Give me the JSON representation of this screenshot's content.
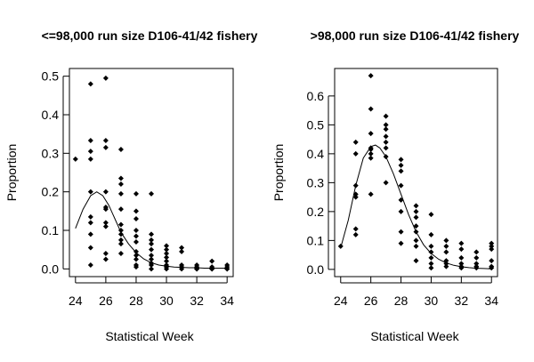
{
  "chart_data": [
    {
      "type": "scatter",
      "title": "<=98,000 run size D106-41/42 fishery",
      "xlabel": "Statistical Week",
      "ylabel": "Proportion",
      "xlim": [
        23.6,
        34.4
      ],
      "ylim": [
        -0.02,
        0.52
      ],
      "xticks": [
        24,
        26,
        28,
        30,
        32,
        34
      ],
      "yticks": [
        0.0,
        0.1,
        0.2,
        0.3,
        0.4,
        0.5
      ],
      "ytick_labels": [
        "0.0",
        "0.1",
        "0.2",
        "0.3",
        "0.4",
        "0.5"
      ],
      "grid": false,
      "series": [
        {
          "kind": "points",
          "x": [
            24,
            25,
            25,
            25,
            25,
            25,
            25,
            25,
            25,
            25,
            25,
            26,
            26,
            26,
            26,
            26,
            26,
            26,
            26,
            26,
            26,
            27,
            27,
            27,
            27,
            27,
            27,
            27,
            27,
            27,
            27,
            27,
            28,
            28,
            28,
            28,
            28,
            28,
            28,
            28,
            28,
            28,
            28,
            29,
            29,
            29,
            29,
            29,
            29,
            29,
            29,
            29,
            29,
            30,
            30,
            30,
            30,
            30,
            30,
            30,
            30,
            31,
            31,
            31,
            31,
            31,
            32,
            32,
            32,
            32,
            33,
            33,
            33,
            33,
            34,
            34,
            34,
            34
          ],
          "y": [
            0.285,
            0.48,
            0.333,
            0.305,
            0.285,
            0.2,
            0.135,
            0.12,
            0.09,
            0.055,
            0.01,
            0.495,
            0.333,
            0.315,
            0.2,
            0.16,
            0.155,
            0.12,
            0.11,
            0.04,
            0.025,
            0.31,
            0.235,
            0.22,
            0.195,
            0.155,
            0.115,
            0.1,
            0.09,
            0.075,
            0.065,
            0.04,
            0.195,
            0.15,
            0.13,
            0.1,
            0.085,
            0.07,
            0.045,
            0.035,
            0.025,
            0.01,
            0.005,
            0.195,
            0.09,
            0.075,
            0.065,
            0.05,
            0.035,
            0.025,
            0.015,
            0.01,
            0.0,
            0.06,
            0.05,
            0.04,
            0.03,
            0.02,
            0.01,
            0.005,
            0.0,
            0.055,
            0.045,
            0.01,
            0.005,
            0.0,
            0.01,
            0.005,
            0.0,
            0.0,
            0.02,
            0.005,
            0.0,
            0.0,
            0.01,
            0.005,
            0.0,
            0.0
          ]
        },
        {
          "kind": "curve",
          "x": [
            24,
            24.5,
            25,
            25.4,
            25.8,
            26.2,
            26.6,
            27,
            27.5,
            28,
            28.5,
            29,
            29.5,
            30,
            30.5,
            31,
            31.5,
            32,
            32.5,
            33,
            33.5,
            34
          ],
          "y": [
            0.105,
            0.155,
            0.19,
            0.2,
            0.19,
            0.165,
            0.13,
            0.095,
            0.065,
            0.042,
            0.026,
            0.016,
            0.01,
            0.007,
            0.005,
            0.004,
            0.003,
            0.003,
            0.002,
            0.002,
            0.002,
            0.002
          ]
        }
      ]
    },
    {
      "type": "scatter",
      "title": ">98,000 run size D106-41/42 fishery",
      "xlabel": "Statistical Week",
      "ylabel": "Proportion",
      "xlim": [
        23.6,
        34.4
      ],
      "ylim": [
        -0.025,
        0.695
      ],
      "xticks": [
        24,
        26,
        28,
        30,
        32,
        34
      ],
      "yticks": [
        0.0,
        0.1,
        0.2,
        0.3,
        0.4,
        0.5,
        0.6
      ],
      "ytick_labels": [
        "0.0",
        "0.1",
        "0.2",
        "0.3",
        "0.4",
        "0.5",
        "0.6"
      ],
      "grid": false,
      "series": [
        {
          "kind": "points",
          "x": [
            24,
            25,
            25,
            25,
            25,
            25,
            25,
            25,
            26,
            26,
            26,
            26,
            26,
            26,
            26,
            26,
            27,
            27,
            27,
            27,
            27,
            27,
            27,
            27,
            28,
            28,
            28,
            28,
            28,
            28,
            28,
            28,
            29,
            29,
            29,
            29,
            29,
            29,
            29,
            29,
            30,
            30,
            30,
            30,
            30,
            30,
            30,
            31,
            31,
            31,
            31,
            31,
            31,
            32,
            32,
            32,
            32,
            32,
            32,
            33,
            33,
            33,
            33,
            33,
            34,
            34,
            34,
            34,
            34,
            34
          ],
          "y": [
            0.08,
            0.44,
            0.4,
            0.29,
            0.26,
            0.25,
            0.14,
            0.12,
            0.67,
            0.555,
            0.47,
            0.42,
            0.415,
            0.4,
            0.385,
            0.26,
            0.53,
            0.5,
            0.485,
            0.46,
            0.44,
            0.42,
            0.39,
            0.3,
            0.38,
            0.36,
            0.34,
            0.29,
            0.24,
            0.2,
            0.13,
            0.09,
            0.22,
            0.2,
            0.18,
            0.15,
            0.13,
            0.1,
            0.08,
            0.03,
            0.19,
            0.12,
            0.08,
            0.06,
            0.04,
            0.02,
            0.005,
            0.1,
            0.08,
            0.06,
            0.03,
            0.02,
            0.01,
            0.09,
            0.07,
            0.04,
            0.02,
            0.01,
            0.005,
            0.06,
            0.04,
            0.02,
            0.01,
            0.005,
            0.09,
            0.08,
            0.07,
            0.03,
            0.01,
            0.005
          ]
        },
        {
          "kind": "curve",
          "x": [
            24,
            24.5,
            25,
            25.5,
            26,
            26.3,
            26.6,
            27,
            27.5,
            28,
            28.5,
            29,
            29.5,
            30,
            30.5,
            31,
            31.5,
            32,
            32.5,
            33,
            33.5,
            34
          ],
          "y": [
            0.075,
            0.17,
            0.29,
            0.385,
            0.425,
            0.43,
            0.42,
            0.39,
            0.33,
            0.26,
            0.19,
            0.13,
            0.085,
            0.055,
            0.035,
            0.022,
            0.014,
            0.009,
            0.006,
            0.004,
            0.003,
            0.002
          ]
        }
      ]
    }
  ]
}
